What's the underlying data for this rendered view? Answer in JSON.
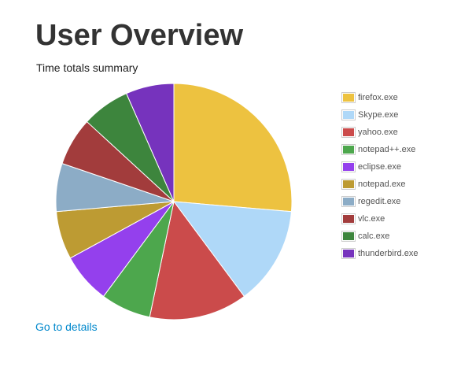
{
  "header": {
    "title": "User Overview",
    "subtitle": "Time totals summary"
  },
  "links": {
    "details": "Go to details"
  },
  "chart_data": {
    "type": "pie",
    "title": "",
    "legend_position": "right",
    "slices": [
      {
        "label": "firefox.exe",
        "value": 27.6,
        "color": "#edc240"
      },
      {
        "label": "Skype.exe",
        "value": 14.1,
        "color": "#afd8f8"
      },
      {
        "label": "yahoo.exe",
        "value": 14.1,
        "color": "#cb4b4b"
      },
      {
        "label": "notepad++.exe",
        "value": 7.2,
        "color": "#4da74d"
      },
      {
        "label": "eclipse.exe",
        "value": 7.2,
        "color": "#9440ed"
      },
      {
        "label": "notepad.exe",
        "value": 6.9,
        "color": "#bd9b33"
      },
      {
        "label": "regedit.exe",
        "value": 6.9,
        "color": "#8cacc6"
      },
      {
        "label": "vlc.exe",
        "value": 6.9,
        "color": "#a23c3c"
      },
      {
        "label": "calc.exe",
        "value": 6.9,
        "color": "#3d853d"
      },
      {
        "label": "thunderbird.exe",
        "value": 6.9,
        "color": "#7633bd"
      }
    ]
  }
}
